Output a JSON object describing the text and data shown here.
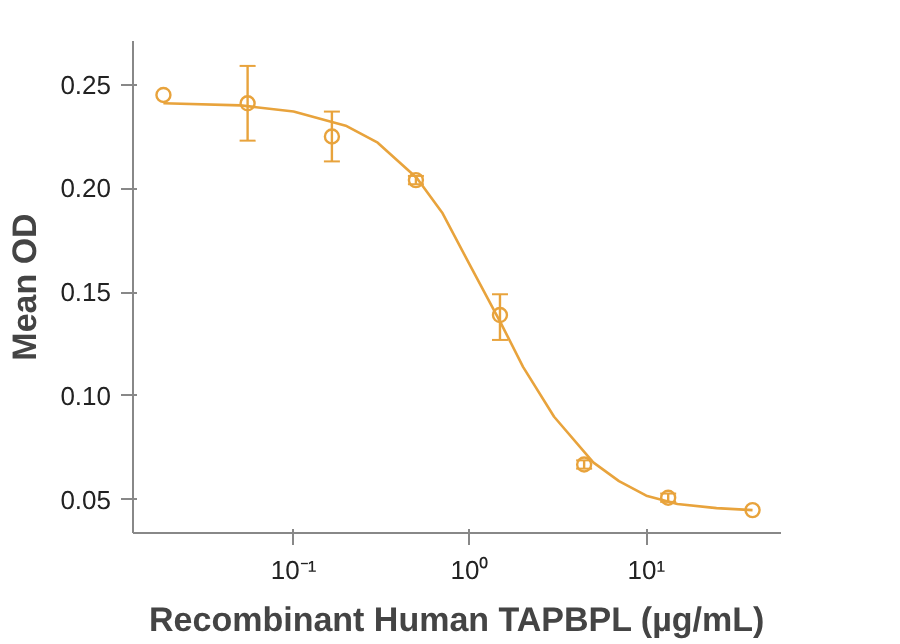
{
  "chart_data": {
    "type": "scatter",
    "xlabel": "Recombinant Human TAPBPL (µg/mL)",
    "ylabel": "Mean OD",
    "log": "x",
    "xlim": [
      0.0123,
      58
    ],
    "ylim": [
      0.034,
      0.271
    ],
    "xticks": [
      {
        "value": 0.1,
        "label": "10⁻¹"
      },
      {
        "value": 1,
        "label": "10⁰"
      },
      {
        "value": 10,
        "label": "10¹"
      }
    ],
    "yticks": [
      {
        "value": 0.05,
        "label": "0.05"
      },
      {
        "value": 0.1,
        "label": "0.10"
      },
      {
        "value": 0.15,
        "label": "0.15"
      },
      {
        "value": 0.2,
        "label": "0.20"
      },
      {
        "value": 0.25,
        "label": "0.25"
      }
    ],
    "grid": false,
    "series": [
      {
        "marker": "circle",
        "color": "#e8a33c",
        "x": [
          0.0183,
          0.0549,
          0.165,
          0.494,
          1.48,
          4.44,
          13.3,
          40
        ],
        "values": [
          0.245,
          0.241,
          0.225,
          0.204,
          0.139,
          0.067,
          0.051,
          0.045
        ],
        "errors": [
          null,
          [
            0.223,
            0.259
          ],
          [
            0.213,
            0.237
          ],
          [
            0.202,
            0.206
          ],
          [
            0.127,
            0.149
          ],
          [
            0.065,
            0.069
          ],
          [
            0.049,
            0.053
          ],
          null
        ]
      },
      {
        "type": "line",
        "color": "#e8a33c",
        "line_style": "solid",
        "x": [
          0.0183,
          0.05,
          0.1,
          0.2,
          0.3,
          0.5,
          0.7,
          1,
          1.5,
          2,
          3,
          5,
          7,
          10,
          15,
          25,
          40
        ],
        "values": [
          0.241,
          0.24,
          0.237,
          0.23,
          0.222,
          0.205,
          0.188,
          0.163,
          0.135,
          0.114,
          0.09,
          0.068,
          0.059,
          0.052,
          0.048,
          0.046,
          0.045
        ]
      }
    ]
  }
}
